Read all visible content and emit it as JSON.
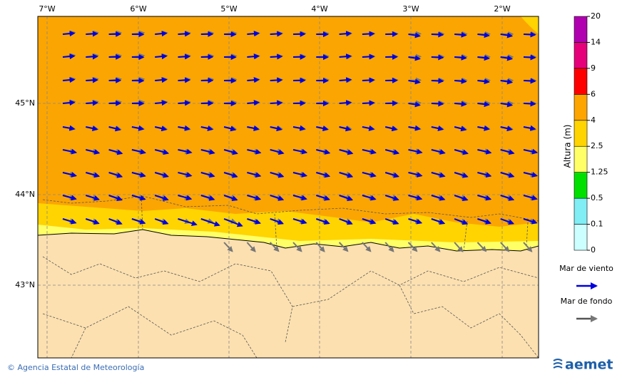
{
  "map": {
    "lon_labels": [
      "7°W",
      "6°W",
      "5°W",
      "4°W",
      "3°W",
      "2°W"
    ],
    "lat_labels": [
      "45°N",
      "44°N",
      "43°N"
    ]
  },
  "colorbar": {
    "title": "Altura (m)",
    "ticks": [
      0,
      0.1,
      0.5,
      1.25,
      2.5,
      4,
      6,
      9,
      14,
      20
    ],
    "colors": [
      "#ccffff",
      "#80eef4",
      "#00e000",
      "#ffff66",
      "#ffd400",
      "#ffa500",
      "#ff0000",
      "#e6007a",
      "#b000b0"
    ]
  },
  "legend": {
    "wind_sea": "Mar de viento",
    "swell": "Mar de fondo"
  },
  "footer": {
    "credit": "© Agencia Estatal de Meteorología",
    "logo": "aemet"
  }
}
